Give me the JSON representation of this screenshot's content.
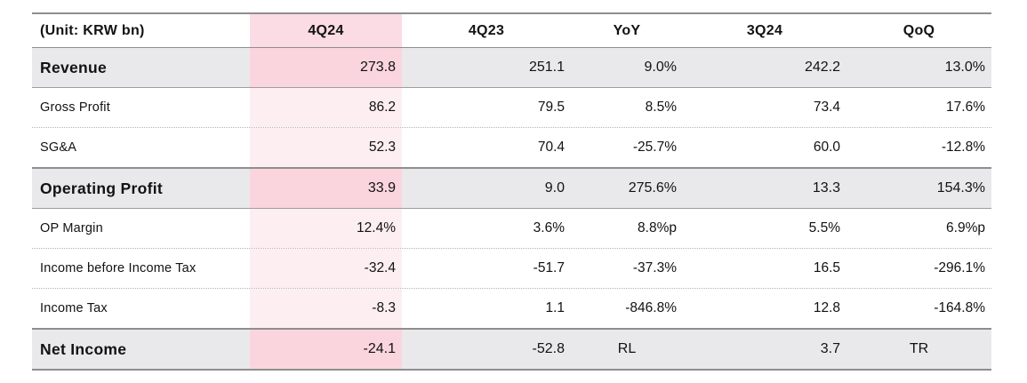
{
  "table": {
    "unit_label": "(Unit: KRW bn)",
    "columns": [
      "4Q24",
      "4Q23",
      "YoY",
      "3Q24",
      "QoQ"
    ],
    "highlight_column": "4Q24",
    "colors": {
      "highlight_header": "#fbdce4",
      "highlight_emphasis": "#fad5de",
      "highlight_light": "#fdeef2",
      "emphasis_row_bg": "#e9e9eb",
      "border_strong": "#8e8e8e",
      "border_dotted": "#b6b6b6",
      "text": "#121212"
    },
    "rows": [
      {
        "label": "Revenue",
        "emphasis": true,
        "values": [
          "273.8",
          "251.1",
          "9.0%",
          "242.2",
          "13.0%"
        ]
      },
      {
        "label": "Gross Profit",
        "emphasis": false,
        "values": [
          "86.2",
          "79.5",
          "8.5%",
          "73.4",
          "17.6%"
        ]
      },
      {
        "label": "SG&A",
        "emphasis": false,
        "values": [
          "52.3",
          "70.4",
          "-25.7%",
          "60.0",
          "-12.8%"
        ]
      },
      {
        "label": "Operating Profit",
        "emphasis": true,
        "values": [
          "33.9",
          "9.0",
          "275.6%",
          "13.3",
          "154.3%"
        ]
      },
      {
        "label": "OP Margin",
        "emphasis": false,
        "values": [
          "12.4%",
          "3.6%",
          "8.8%p",
          "5.5%",
          "6.9%p"
        ]
      },
      {
        "label": "Income before Income Tax",
        "emphasis": false,
        "values": [
          "-32.4",
          "-51.7",
          "-37.3%",
          "16.5",
          "-296.1%"
        ]
      },
      {
        "label": "Income Tax",
        "emphasis": false,
        "values": [
          "-8.3",
          "1.1",
          "-846.8%",
          "12.8",
          "-164.8%"
        ]
      },
      {
        "label": "Net Income",
        "emphasis": true,
        "values": [
          "-24.1",
          "-52.8",
          "RL",
          "3.7",
          "TR"
        ]
      }
    ]
  }
}
